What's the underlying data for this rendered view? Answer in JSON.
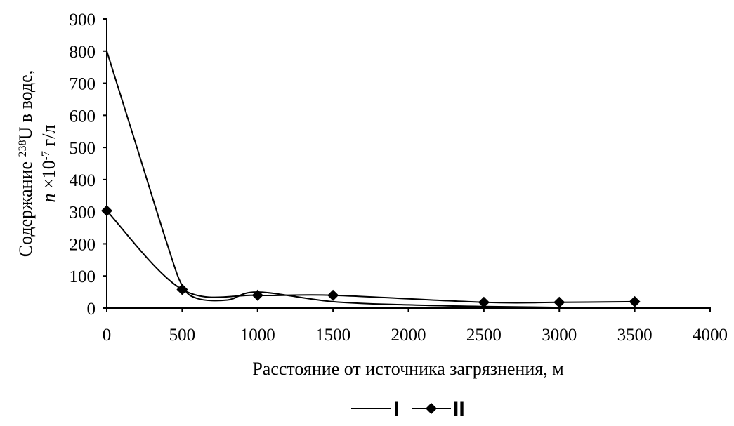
{
  "chart_data": {
    "type": "line",
    "title": "",
    "xlabel": "Расстояние от источника загрязнения, м",
    "ylabel_line1_prefix": "Содержание ",
    "ylabel_line1_sup": "238",
    "ylabel_line1_suffix": "U в воде,",
    "ylabel_line2_italic": "n",
    "ylabel_line2_mid": " ×10",
    "ylabel_line2_sup": "-7",
    "ylabel_line2_suffix": " г/л",
    "xlim": [
      0,
      4000
    ],
    "ylim": [
      0,
      900
    ],
    "x_ticks": [
      "0",
      "500",
      "1000",
      "1500",
      "2000",
      "2500",
      "3000",
      "3500",
      "4000"
    ],
    "y_ticks": [
      "0",
      "100",
      "200",
      "300",
      "400",
      "500",
      "600",
      "700",
      "800",
      "900"
    ],
    "grid": false,
    "legend_position": "bottom-center",
    "series": [
      {
        "name": "I",
        "marker": "none",
        "color": "#000000",
        "points": [
          [
            0,
            800
          ],
          [
            200,
            500
          ],
          [
            400,
            200
          ],
          [
            500,
            70
          ],
          [
            600,
            30
          ],
          [
            800,
            25
          ],
          [
            1000,
            50
          ],
          [
            1500,
            20
          ],
          [
            2000,
            10
          ],
          [
            2500,
            5
          ],
          [
            3000,
            2
          ],
          [
            3500,
            2
          ]
        ]
      },
      {
        "name": "II",
        "marker": "diamond",
        "color": "#000000",
        "points": [
          [
            0,
            303
          ],
          [
            500,
            58
          ],
          [
            1000,
            40
          ],
          [
            1500,
            40
          ],
          [
            2500,
            18
          ],
          [
            3000,
            18
          ],
          [
            3500,
            20
          ]
        ]
      }
    ]
  }
}
